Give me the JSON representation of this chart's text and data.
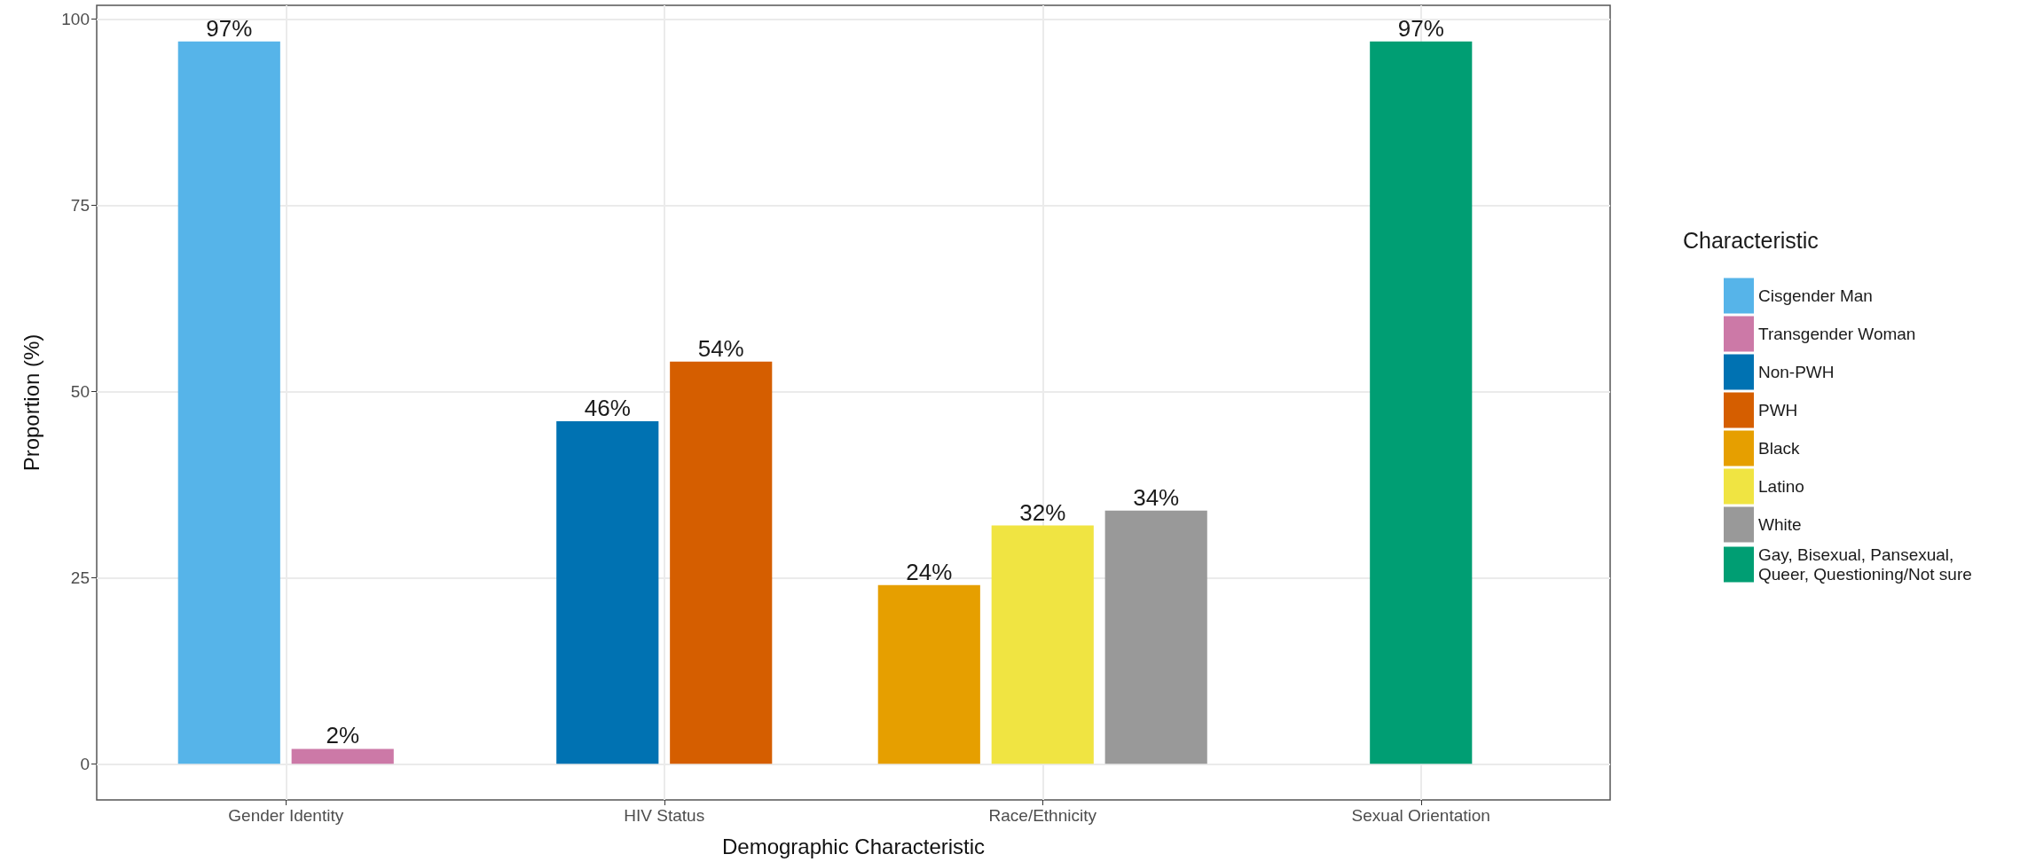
{
  "chart_data": {
    "type": "bar",
    "xlabel": "Demographic Characteristic",
    "ylabel": "Proportion (%)",
    "legend_title": "Characteristic",
    "legend": "right",
    "categories": [
      "Gender Identity",
      "HIV Status",
      "Race/Ethnicity",
      "Sexual Orientation"
    ],
    "series": [
      {
        "name": "Cisgender Man",
        "color": "#56b4e9",
        "values": [
          97,
          null,
          null,
          null
        ],
        "value_labels": [
          "97%",
          null,
          null,
          null
        ]
      },
      {
        "name": "Transgender Woman",
        "color": "#cc79a7",
        "values": [
          2,
          null,
          null,
          null
        ],
        "value_labels": [
          "2%",
          null,
          null,
          null
        ]
      },
      {
        "name": "Non-PWH",
        "color": "#0072b2",
        "values": [
          null,
          46,
          null,
          null
        ],
        "value_labels": [
          null,
          "46%",
          null,
          null
        ]
      },
      {
        "name": "PWH",
        "color": "#d55e00",
        "values": [
          null,
          54,
          null,
          null
        ],
        "value_labels": [
          null,
          "54%",
          null,
          null
        ]
      },
      {
        "name": "Black",
        "color": "#e69f00",
        "values": [
          null,
          null,
          24,
          null
        ],
        "value_labels": [
          null,
          null,
          "24%",
          null
        ]
      },
      {
        "name": "Latino",
        "color": "#f0e442",
        "values": [
          null,
          null,
          32,
          null
        ],
        "value_labels": [
          null,
          null,
          "32%",
          null
        ]
      },
      {
        "name": "White",
        "color": "#999999",
        "values": [
          null,
          null,
          34,
          null
        ],
        "value_labels": [
          null,
          null,
          "34%",
          null
        ]
      },
      {
        "name": "Gay, Bisexual, Pansexual, Queer, Questioning/Not sure",
        "color": "#009e73",
        "values": [
          null,
          null,
          null,
          97
        ],
        "value_labels": [
          null,
          null,
          null,
          "97%"
        ]
      }
    ],
    "ylim": [
      -4.85,
      101.85
    ],
    "yticks": [
      0,
      25,
      50,
      75,
      100
    ],
    "grid": true
  }
}
